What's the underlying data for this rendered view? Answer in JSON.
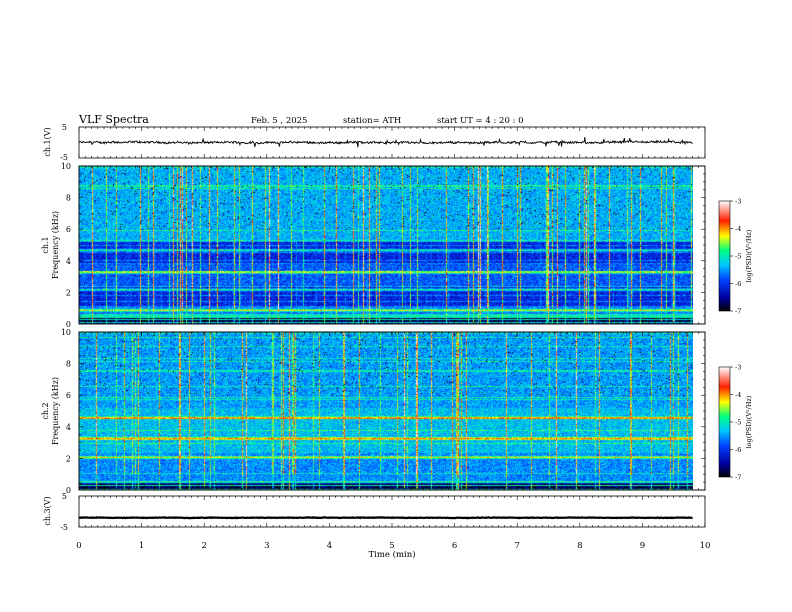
{
  "header": {
    "title": "VLF  Spectra",
    "date": "Feb. 5  , 2025",
    "station": "station= ATH",
    "start": "start  UT  =   4  : 20 : 0"
  },
  "chart_data": [
    {
      "type": "line",
      "panel": "ch1-voltage",
      "ylabel": "ch.1(V)",
      "yticks": [
        "5",
        "-5"
      ],
      "ylim": [
        -5,
        5
      ],
      "x_range": [
        0,
        9.8
      ],
      "y_mean": 0.0,
      "y_noise": 0.6,
      "color": "#000000"
    },
    {
      "type": "heatmap",
      "panel": "ch1-spectrogram",
      "ylabel": "ch.1\nFrequency  (kHz)",
      "ylabel_lines": [
        "ch.1",
        "Frequency  (kHz)"
      ],
      "ylim": [
        0,
        10
      ],
      "yticks": [
        "0",
        "2",
        "4",
        "6",
        "8",
        "10"
      ],
      "x_range": [
        0,
        9.8
      ],
      "colorbar": {
        "label": "log(PSD)(V²/Hz)",
        "range": [
          -7,
          -3
        ],
        "ticks": [
          "-3",
          "-4",
          "-5",
          "-6",
          "-7"
        ]
      },
      "bands_khz": [
        0.9,
        2.2,
        3.3,
        4.7
      ]
    },
    {
      "type": "heatmap",
      "panel": "ch2-spectrogram",
      "ylabel": "ch.2\nFrequency  (kHz)",
      "ylabel_lines": [
        "ch.2",
        "Frequency  (kHz)"
      ],
      "ylim": [
        0,
        10
      ],
      "yticks": [
        "0",
        "2",
        "4",
        "6",
        "8",
        "10"
      ],
      "x_range": [
        0,
        9.8
      ],
      "colorbar": {
        "label": "log(PSD)(V²/Hz)",
        "range": [
          -7,
          -3
        ],
        "ticks": [
          "-3",
          "-4",
          "-5",
          "-6",
          "-7"
        ]
      },
      "bands_khz": [
        2.1,
        3.3,
        4.6
      ]
    },
    {
      "type": "line",
      "panel": "ch3-voltage",
      "ylabel": "ch.3(V)",
      "yticks": [
        "5",
        "-5"
      ],
      "ylim": [
        -5,
        5
      ],
      "x_range": [
        0,
        9.8
      ],
      "y_mean": -2.0,
      "y_noise": 0.15,
      "color": "#000000"
    }
  ],
  "xaxis": {
    "label": "Time  (min)",
    "ticks": [
      "0",
      "1",
      "2",
      "3",
      "4",
      "5",
      "6",
      "7",
      "8",
      "9",
      "10"
    ],
    "xlim": [
      0,
      10
    ]
  }
}
